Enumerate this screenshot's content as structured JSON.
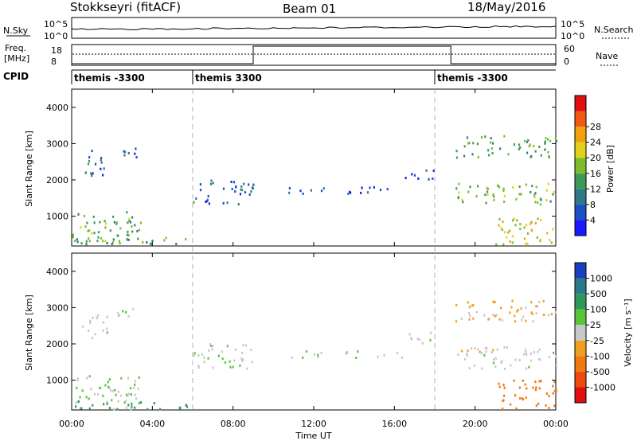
{
  "header": {
    "station": "Stokkseyri (fitACF)",
    "beam": "Beam 01",
    "date": "18/May/2016"
  },
  "panels": {
    "nsky": {
      "label": "N.Sky",
      "left_ticks": [
        "10^5",
        "10^0"
      ],
      "right_ticks": [
        "10^5",
        "10^0"
      ],
      "right_label": "N.Search"
    },
    "freq": {
      "label": "Freq.",
      "unit": "[MHz]",
      "left_ticks": [
        "18",
        "8"
      ],
      "right_ticks": [
        "60",
        "0"
      ],
      "right_label": "Nave"
    },
    "cpid": {
      "label": "CPID",
      "segments": [
        {
          "text": "themis -3300",
          "start_hour": 0
        },
        {
          "text": "themis 3300",
          "start_hour": 6
        },
        {
          "text": "themis -3300",
          "start_hour": 18
        }
      ]
    }
  },
  "axes": {
    "xlabel": "Time UT",
    "x_ticks": [
      "00:00",
      "04:00",
      "08:00",
      "12:00",
      "16:00",
      "20:00",
      "00:00"
    ],
    "x_range_hours": [
      0,
      24
    ],
    "ylabel": "Slant Range [km]",
    "y_ticks": [
      1000,
      2000,
      3000,
      4000
    ],
    "y_range_km": [
      180,
      4500
    ]
  },
  "colorbars": {
    "power": {
      "label": "Power [dB]",
      "ticks": [
        "4",
        "8",
        "12",
        "16",
        "20",
        "24",
        "28"
      ],
      "colors": [
        "#1a1aff",
        "#1f4fc4",
        "#2f7a86",
        "#3f9a5a",
        "#7cbd2b",
        "#e0d21a",
        "#f2a010",
        "#f05a10",
        "#e01010"
      ]
    },
    "velocity": {
      "label": "Velocity [m s⁻¹]",
      "ticks": [
        "1000",
        "500",
        "100",
        "25",
        "-25",
        "-100",
        "-500",
        "-1000"
      ],
      "colors": [
        "#1a3fbf",
        "#2a7a8a",
        "#2e9a5a",
        "#59c63a",
        "#c8c8c8",
        "#f0a020",
        "#f07a10",
        "#ee4a10",
        "#e01010"
      ]
    }
  },
  "chart_data": {
    "type": "heatmap",
    "title": "Stokkseyri (fitACF)",
    "subtitle": "Beam 01",
    "xlabel": "Time UT",
    "ylabel": "Slant Range [km]",
    "xlim_hours": [
      0,
      24
    ],
    "ylim_km": [
      180,
      4500
    ],
    "panels": [
      "Power [dB]",
      "Velocity [m s⁻¹]"
    ],
    "scatter_regions": [
      {
        "t": [
          0,
          3.4
        ],
        "r": [
          180,
          1100
        ],
        "power_db": 14,
        "velocity": 20
      },
      {
        "t": [
          0.5,
          1.8
        ],
        "r": [
          2100,
          2800
        ],
        "power_db": 7,
        "velocity": 10
      },
      {
        "t": [
          2.2,
          3.2
        ],
        "r": [
          2600,
          3000
        ],
        "power_db": 6,
        "velocity": 10
      },
      {
        "t": [
          6,
          9
        ],
        "r": [
          1300,
          2000
        ],
        "power_db": 6,
        "velocity": 15
      },
      {
        "t": [
          10.5,
          12.5
        ],
        "r": [
          1600,
          1800
        ],
        "power_db": 5,
        "velocity": 10
      },
      {
        "t": [
          13.5,
          16.5
        ],
        "r": [
          1600,
          1800
        ],
        "power_db": 5,
        "velocity": 10
      },
      {
        "t": [
          16.5,
          18
        ],
        "r": [
          2000,
          2300
        ],
        "power_db": 6,
        "velocity": 10
      },
      {
        "t": [
          19,
          24
        ],
        "r": [
          1300,
          1900
        ],
        "power_db": 15,
        "velocity": 0
      },
      {
        "t": [
          19,
          24
        ],
        "r": [
          2600,
          3200
        ],
        "power_db": 12,
        "velocity": -30
      },
      {
        "t": [
          21,
          24
        ],
        "r": [
          200,
          1000
        ],
        "power_db": 20,
        "velocity": -200
      },
      {
        "t": [
          0,
          6
        ],
        "r": [
          180,
          400
        ],
        "power_db": 12,
        "velocity": 150
      }
    ],
    "cpid_change_hours": [
      6,
      18
    ],
    "nave_step": {
      "low": 0,
      "high": 60,
      "high_from_hour": 9,
      "high_to_hour": 18.8
    }
  }
}
